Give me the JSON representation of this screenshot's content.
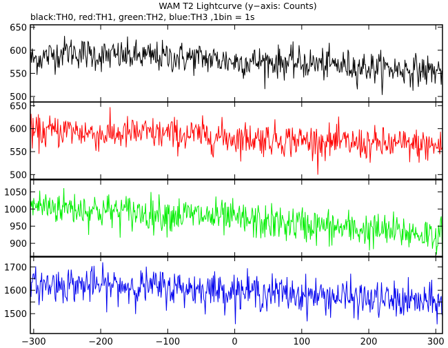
{
  "header": {
    "title": "WAM T2 Lightcurve (y−axis: Counts)",
    "subtitle": "black:TH0, red:TH1, green:TH2, blue:TH3 ,1bin = 1s"
  },
  "chart_data": {
    "type": "line",
    "layout": "4 vertically stacked panels sharing the x axis",
    "x_axis": {
      "range": [
        -305,
        310
      ],
      "ticks": [
        -300,
        -200,
        -100,
        0,
        100,
        200,
        300
      ],
      "bin_seconds": 1
    },
    "panels": [
      {
        "channel": "TH0",
        "color": "#000000",
        "ylim": [
          488,
          655
        ],
        "yticks": [
          500,
          550,
          600,
          650
        ],
        "trend_points": [
          [
            -300,
            580
          ],
          [
            -250,
            598
          ],
          [
            -200,
            588
          ],
          [
            -150,
            587
          ],
          [
            -100,
            585
          ],
          [
            -50,
            583
          ],
          [
            0,
            575
          ],
          [
            50,
            575
          ],
          [
            100,
            572
          ],
          [
            150,
            568
          ],
          [
            200,
            563
          ],
          [
            250,
            558
          ],
          [
            300,
            555
          ]
        ],
        "noise_sd": 17
      },
      {
        "channel": "TH1",
        "color": "#ff0000",
        "ylim": [
          490,
          658
        ],
        "yticks": [
          500,
          550,
          600,
          650
        ],
        "trend_points": [
          [
            -300,
            590
          ],
          [
            -250,
            597
          ],
          [
            -200,
            587
          ],
          [
            -150,
            590
          ],
          [
            -100,
            588
          ],
          [
            -50,
            585
          ],
          [
            0,
            580
          ],
          [
            50,
            578
          ],
          [
            100,
            574
          ],
          [
            150,
            570
          ],
          [
            200,
            566
          ],
          [
            250,
            565
          ],
          [
            300,
            562
          ]
        ],
        "noise_sd": 18
      },
      {
        "channel": "TH2",
        "color": "#00ee00",
        "ylim": [
          860,
          1085
        ],
        "yticks": [
          900,
          950,
          1000,
          1050
        ],
        "trend_points": [
          [
            -300,
            1010
          ],
          [
            -250,
            1005
          ],
          [
            -200,
            995
          ],
          [
            -150,
            990
          ],
          [
            -100,
            985
          ],
          [
            -50,
            980
          ],
          [
            0,
            970
          ],
          [
            50,
            960
          ],
          [
            100,
            955
          ],
          [
            150,
            945
          ],
          [
            200,
            938
          ],
          [
            250,
            932
          ],
          [
            300,
            925
          ]
        ],
        "noise_sd": 26
      },
      {
        "channel": "TH3",
        "color": "#0000ee",
        "ylim": [
          1415,
          1745
        ],
        "yticks": [
          1500,
          1550,
          1600,
          1650,
          1700
        ],
        "ytick_labels": [
          1500,
          1600,
          1700
        ],
        "trend_points": [
          [
            -300,
            1620
          ],
          [
            -250,
            1625
          ],
          [
            -200,
            1620
          ],
          [
            -150,
            1618
          ],
          [
            -100,
            1612
          ],
          [
            -50,
            1605
          ],
          [
            0,
            1598
          ],
          [
            50,
            1590
          ],
          [
            100,
            1580
          ],
          [
            150,
            1572
          ],
          [
            200,
            1560
          ],
          [
            250,
            1555
          ],
          [
            300,
            1545
          ]
        ],
        "noise_sd": 38
      }
    ]
  }
}
